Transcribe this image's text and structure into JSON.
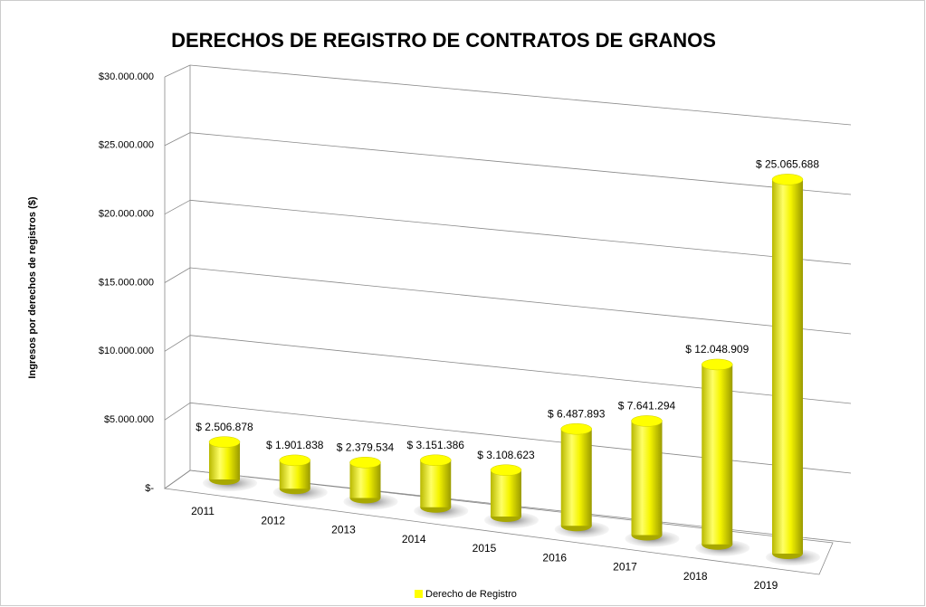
{
  "chart_data": {
    "type": "bar3d",
    "title": "DERECHOS DE REGISTRO DE CONTRATOS DE GRANOS",
    "y_label": "Ingresos por derechos de registros ($)",
    "categories": [
      "2011",
      "2012",
      "2013",
      "2014",
      "2015",
      "2016",
      "2017",
      "2018",
      "2019"
    ],
    "series": [
      {
        "name": "Derecho de Registro",
        "color": "#ffff00",
        "values": [
          2506878,
          1901838,
          2379534,
          3151386,
          3108623,
          6487893,
          7641294,
          12048909,
          25065688
        ],
        "value_labels": [
          "$ 2.506.878",
          "$ 1.901.838",
          "$ 2.379.534",
          "$ 3.151.386",
          "$ 3.108.623",
          "$ 6.487.893",
          "$ 7.641.294",
          "$ 12.048.909",
          "$ 25.065.688"
        ]
      }
    ],
    "ylim": [
      0,
      30000000
    ],
    "yticks": [
      {
        "value": 0,
        "label": "$-"
      },
      {
        "value": 5000000,
        "label": "$5.000.000"
      },
      {
        "value": 10000000,
        "label": "$10.000.000"
      },
      {
        "value": 15000000,
        "label": "$15.000.000"
      },
      {
        "value": 20000000,
        "label": "$20.000.000"
      },
      {
        "value": 25000000,
        "label": "$25.000.000"
      },
      {
        "value": 30000000,
        "label": "$30.000.000"
      }
    ],
    "grid": true,
    "legend": "bottom"
  }
}
